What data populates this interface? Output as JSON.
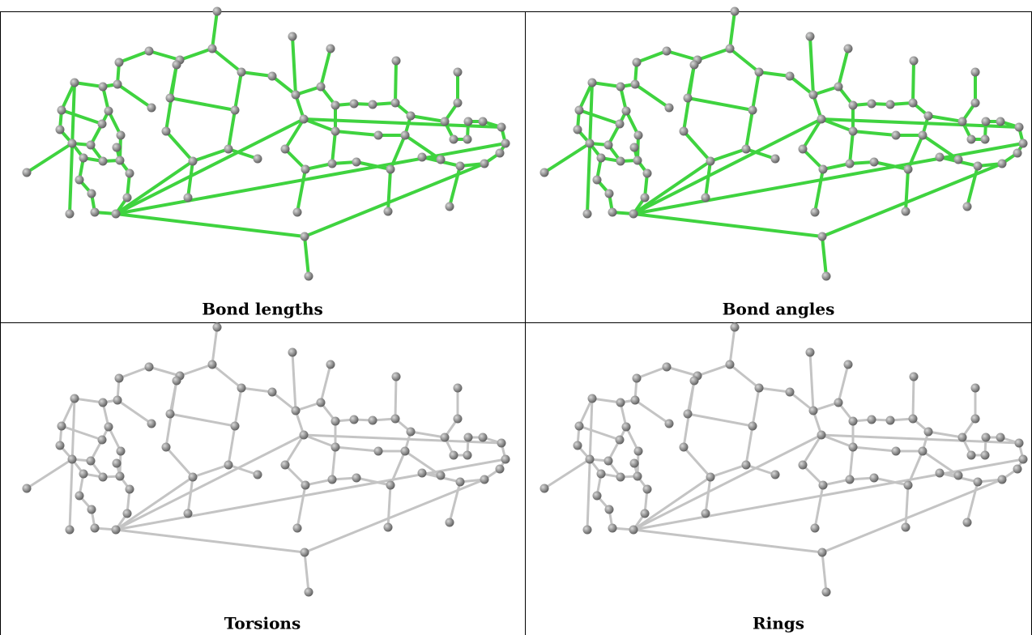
{
  "panels": [
    {
      "caption": "Bond lengths"
    },
    {
      "caption": "Bond angles"
    },
    {
      "caption": "Torsions"
    },
    {
      "caption": "Rings"
    }
  ]
}
